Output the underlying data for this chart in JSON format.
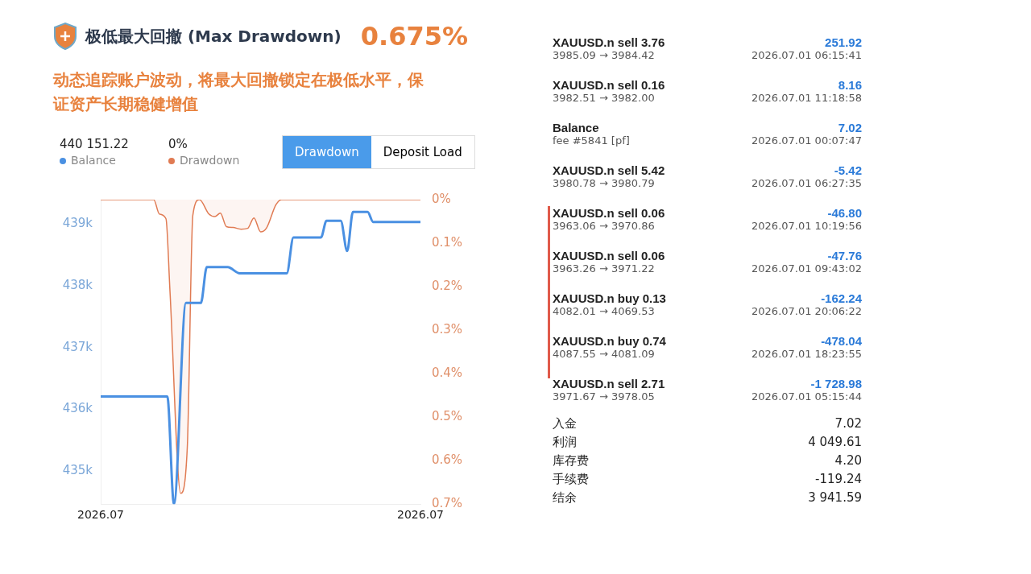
{
  "chart_data": [
    {
      "type": "line",
      "title": "极低最大回撤 (Max Drawdown)",
      "subtitle": "动态追踪账户波动，将最大回撤锁定在极低水平，保证资产长期稳健增值",
      "annotations": [
        "0.675%",
        "440 151.22",
        "0%",
        "Drawdown",
        "Deposit Load"
      ],
      "legend": "top left",
      "grid": false,
      "xlim": [
        "2026-07-01T00:00",
        "2026-07-02T00:00"
      ],
      "xticks": [
        {
          "value": "2026-07-01T00:00",
          "label": "2026.07"
        },
        {
          "value": "2026-07-02T00:00",
          "label": "2026.07"
        }
      ],
      "ylim": [
        434470,
        439390
      ],
      "yticks": [
        {
          "value": 435000,
          "label": "435k"
        },
        {
          "value": 436000,
          "label": "436k"
        },
        {
          "value": 437000,
          "label": "437k"
        },
        {
          "value": 438000,
          "label": "438k"
        },
        {
          "value": 439000,
          "label": "439k"
        }
      ],
      "y2lim": [
        0.7,
        0
      ],
      "y2ticks": [
        {
          "value": 0,
          "label": "0%"
        },
        {
          "value": 0.1,
          "label": "0.1%"
        },
        {
          "value": 0.2,
          "label": "0.2%"
        },
        {
          "value": 0.3,
          "label": "0.3%"
        },
        {
          "value": 0.4,
          "label": "0.4%"
        },
        {
          "value": 0.5,
          "label": "0.5%"
        },
        {
          "value": 0.6,
          "label": "0.6%"
        },
        {
          "value": 0.7,
          "label": "0.7%"
        }
      ],
      "series": [
        {
          "name": "Balance",
          "type": "line",
          "color": "#4a90e2",
          "x": [
            "2026-07-01T00:00",
            "2026-07-01T05:00",
            "2026-07-01T05:30",
            "2026-07-01T06:24",
            "2026-07-01T07:31",
            "2026-07-01T07:58",
            "2026-07-01T09:32",
            "2026-07-01T10:26",
            "2026-07-01T13:58",
            "2026-07-01T14:28",
            "2026-07-01T16:32",
            "2026-07-01T16:57",
            "2026-07-01T18:01",
            "2026-07-01T18:30",
            "2026-07-01T18:56",
            "2026-07-01T20:02",
            "2026-07-01T20:27",
            "2026-07-02T00:00"
          ],
          "values": [
            436210,
            436210,
            434470,
            437720,
            437720,
            438300,
            438300,
            438200,
            438200,
            438780,
            438780,
            439050,
            439050,
            438560,
            439190,
            439190,
            439030,
            439030
          ]
        },
        {
          "name": "Drawdown",
          "type": "area",
          "axis": "y2",
          "color": "#e07b53",
          "x": [
            "2026-07-01T00:00",
            "2026-07-01T03:59",
            "2026-07-01T04:24",
            "2026-07-01T04:54",
            "2026-07-01T05:12",
            "2026-07-01T06:00",
            "2026-07-01T06:30",
            "2026-07-01T06:55",
            "2026-07-01T07:25",
            "2026-07-01T08:07",
            "2026-07-01T08:34",
            "2026-07-01T08:59",
            "2026-07-01T09:26",
            "2026-07-01T09:56",
            "2026-07-01T10:32",
            "2026-07-01T11:02",
            "2026-07-01T11:30",
            "2026-07-01T12:00",
            "2026-07-01T12:27",
            "2026-07-01T13:09",
            "2026-07-01T13:34",
            "2026-07-02T00:00"
          ],
          "values": [
            0,
            0,
            0.033,
            0.044,
            0.21,
            0.675,
            0.57,
            0.036,
            0,
            0.033,
            0.039,
            0.031,
            0.062,
            0.064,
            0.068,
            0.066,
            0.042,
            0.074,
            0.065,
            0.012,
            0,
            0
          ]
        }
      ]
    },
    {
      "type": "other",
      "annotations": [
        "XAUUSD.n sell 3.76",
        "251.92",
        "3985.09 → 3984.42",
        "2026.07.01 06:15:41",
        "XAUUSD.n sell 0.16",
        "8.16",
        "3982.51 → 3982.00",
        "2026.07.01 11:18:58",
        "Balance",
        "7.02",
        "fee #5841 [pf]",
        "2026.07.01 00:07:47",
        "XAUUSD.n sell 5.42",
        "-5.42",
        "3980.78 → 3980.79",
        "2026.07.01 06:27:35",
        "XAUUSD.n sell 0.06",
        "-46.80",
        "3963.06 → 3970.86",
        "2026.07.01 10:19:56",
        "XAUUSD.n sell 0.06",
        "-47.76",
        "3963.26 → 3971.22",
        "2026.07.01 09:43:02",
        "XAUUSD.n buy 0.13",
        "-162.24",
        "4082.01 → 4069.53",
        "2026.07.01 20:06:22",
        "XAUUSD.n buy 0.74",
        "-478.04",
        "4087.55 → 4081.09",
        "2026.07.01 18:23:55",
        "XAUUSD.n sell 2.71",
        "-1 728.98",
        "3971.67 → 3978.05",
        "2026.07.01 05:15:44",
        "入金",
        "7.02",
        "利润",
        "4 049.61",
        "库存费",
        "4.20",
        "手续费",
        "-119.24",
        "结余",
        "3 941.59"
      ]
    }
  ]
}
